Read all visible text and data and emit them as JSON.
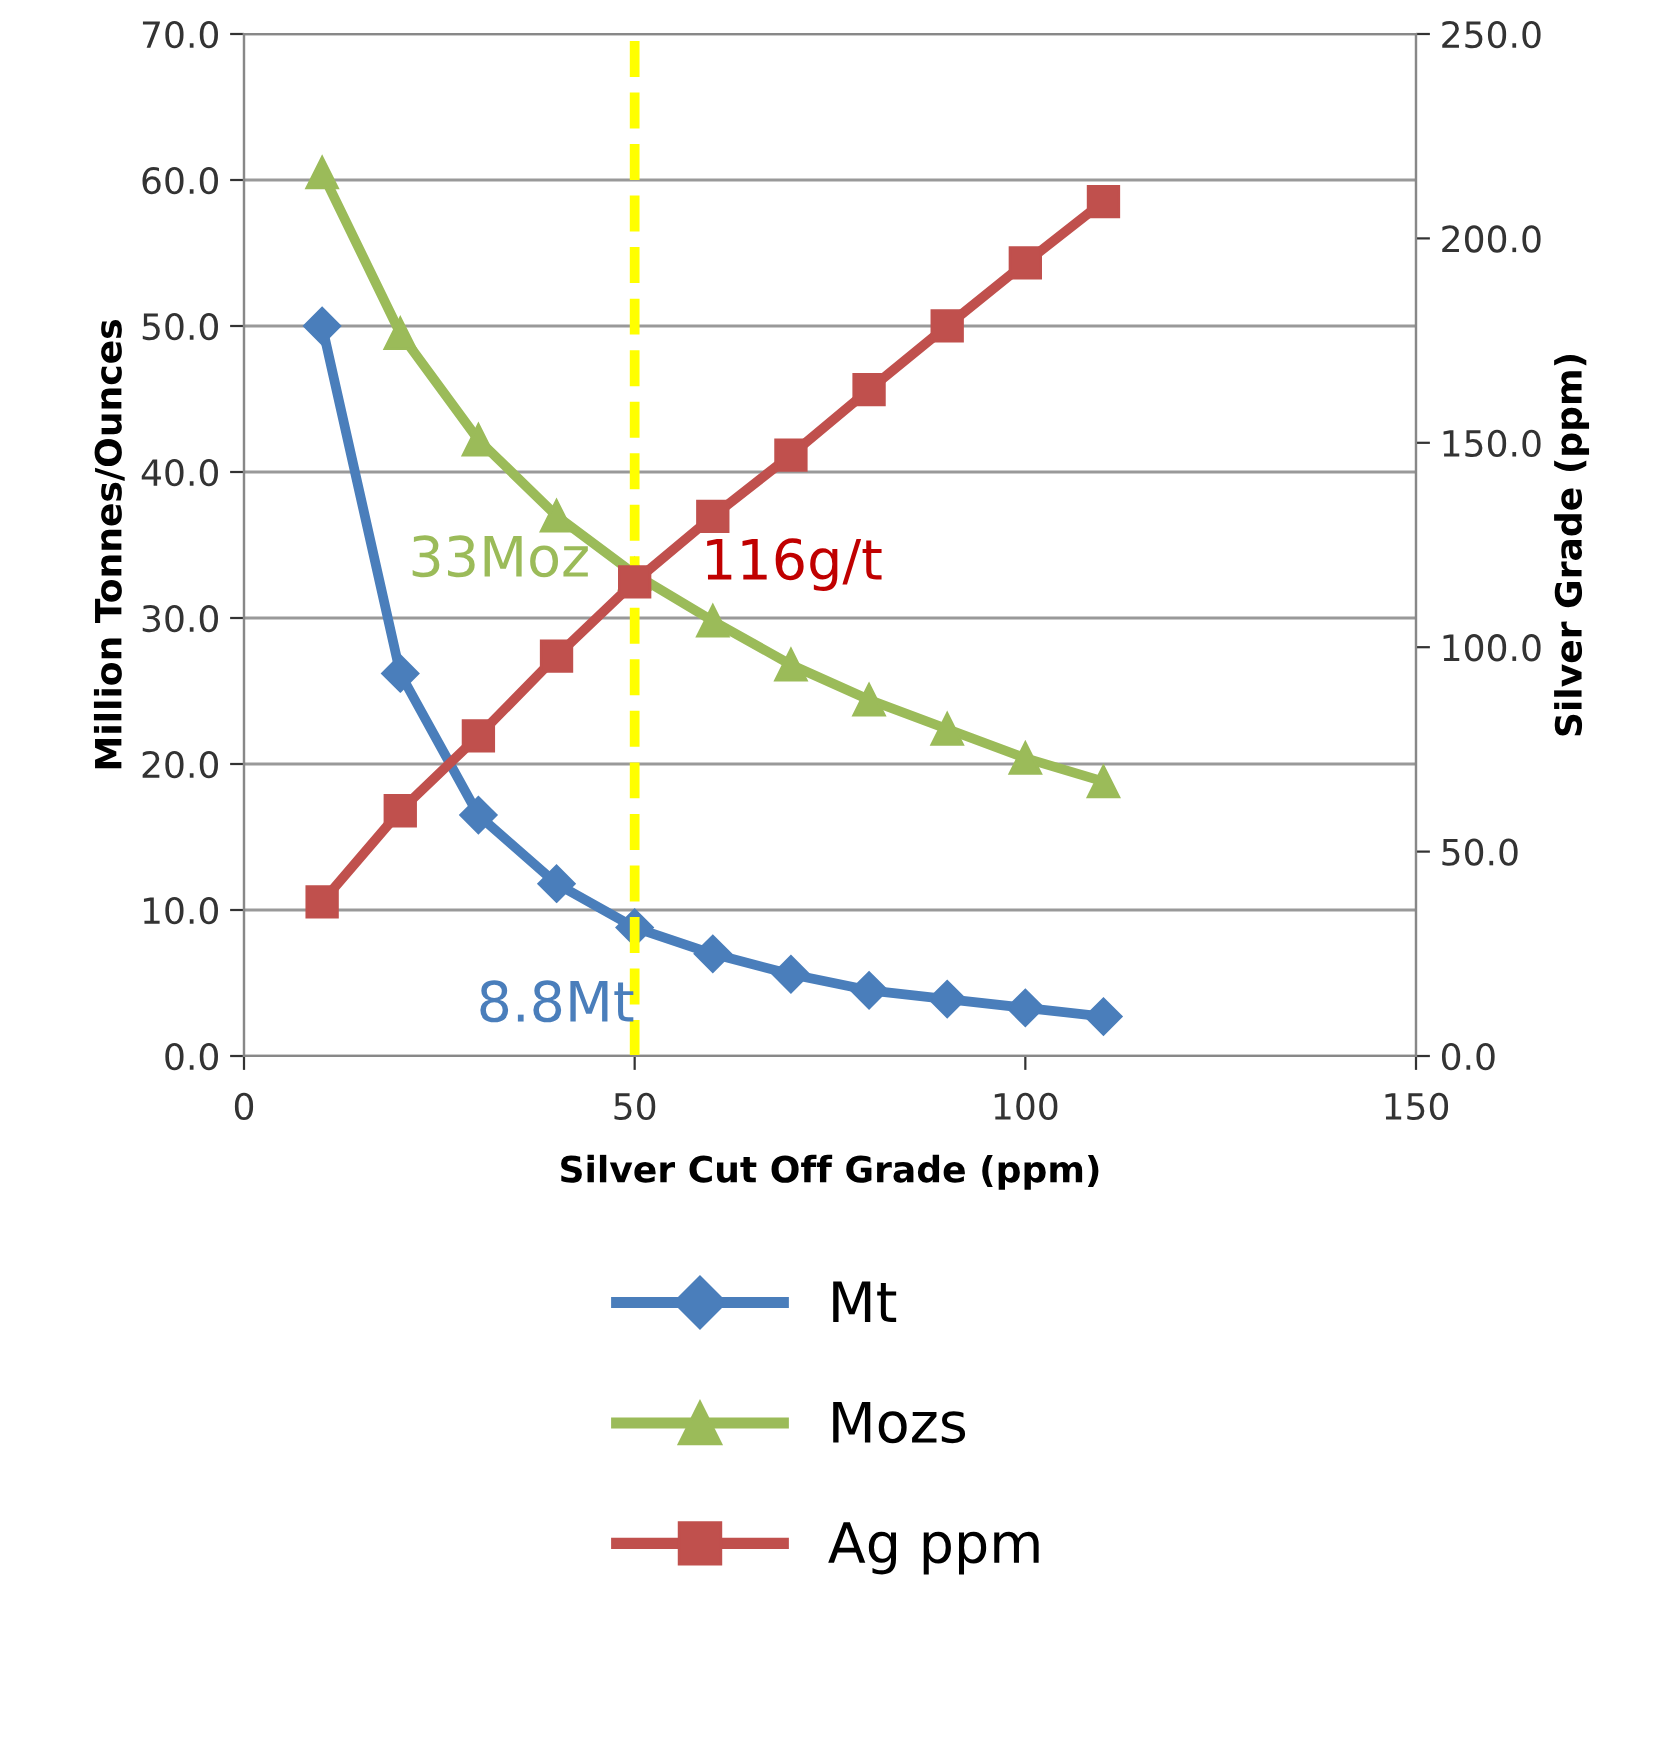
{
  "chart_data": {
    "type": "line",
    "xlabel": "Silver Cut Off Grade (ppm)",
    "ylabel": "Million Tonnes/Ounces",
    "y2label": "Silver Grade (ppm)",
    "x": [
      10,
      20,
      30,
      40,
      50,
      60,
      70,
      80,
      90,
      100,
      110
    ],
    "series": [
      {
        "name": "Mt",
        "color": "#4a7ebb",
        "marker": "diamond",
        "values": [
          50.0,
          26.2,
          16.5,
          11.8,
          8.8,
          7.0,
          5.6,
          4.5,
          3.9,
          3.3,
          2.7
        ]
      },
      {
        "name": "Mozs",
        "color": "#9bbb59",
        "marker": "triangle",
        "values": [
          60.5,
          49.5,
          42.2,
          37.0,
          33.0,
          29.8,
          26.8,
          24.4,
          22.4,
          20.4,
          18.8
        ]
      },
      {
        "name": "Ag ppm",
        "color": "#c0504d",
        "marker": "square",
        "axis": "y2",
        "values": [
          37.7,
          60.0,
          78.3,
          97.8,
          116.0,
          132.0,
          147.0,
          163.0,
          178.6,
          194.0,
          209.0
        ]
      }
    ],
    "xlim": [
      0,
      150
    ],
    "xticks": [
      0,
      50,
      100,
      150
    ],
    "ylim": [
      0,
      70
    ],
    "yticks": [
      {
        "value": 0,
        "label": "0.0"
      },
      {
        "value": 10,
        "label": "10.0"
      },
      {
        "value": 20,
        "label": "20.0"
      },
      {
        "value": 30,
        "label": "30.0"
      },
      {
        "value": 40,
        "label": "40.0"
      },
      {
        "value": 50,
        "label": "50.0"
      },
      {
        "value": 60,
        "label": "60.0"
      },
      {
        "value": 70,
        "label": "70.0"
      }
    ],
    "y2lim": [
      0,
      250
    ],
    "y2ticks": [
      {
        "value": 0,
        "label": "0.0"
      },
      {
        "value": 50,
        "label": "50.0"
      },
      {
        "value": 100,
        "label": "100.0"
      },
      {
        "value": 150,
        "label": "150.0"
      },
      {
        "value": 200,
        "label": "200.0"
      },
      {
        "value": 250,
        "label": "250.0"
      }
    ],
    "ref_lines": [
      {
        "axis": "x",
        "value": 50,
        "color": "#ffff00",
        "line_style": "dashed"
      }
    ],
    "annotations": [
      {
        "text": "8.8Mt",
        "x": 50,
        "y": 8.8
      },
      {
        "text": "33Moz",
        "x": 50,
        "y": 33
      },
      "116g/t"
    ],
    "grid": "y",
    "legend": "bottom",
    "line_style": "solid"
  }
}
